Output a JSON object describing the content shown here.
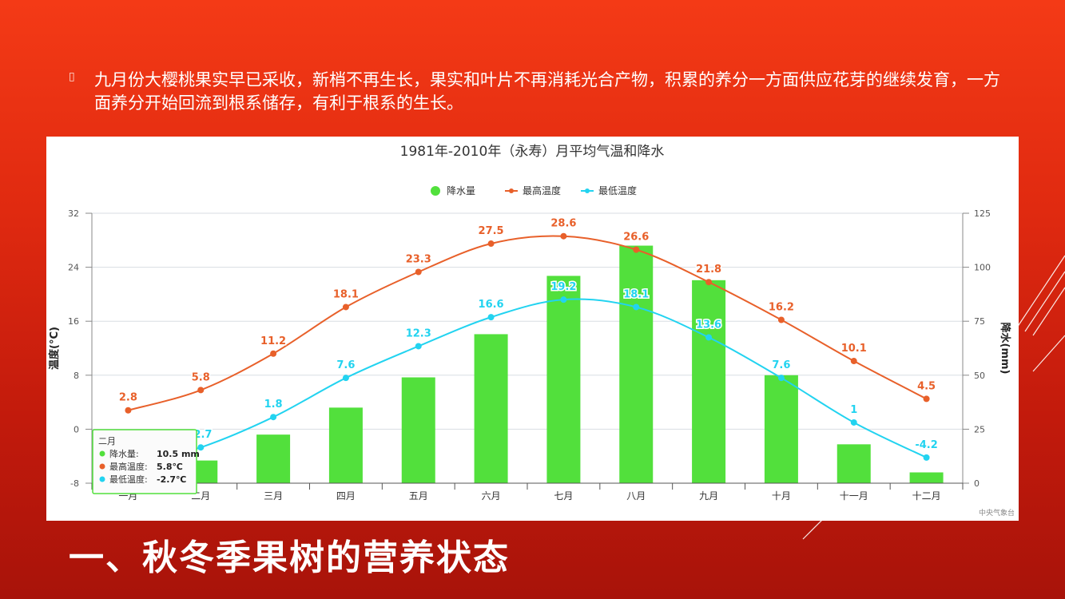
{
  "slide": {
    "bullet_icon": "bullet-glyph",
    "bullet_text": "九月份大樱桃果实早已采收，新梢不再生长，果实和叶片不再消耗光合产物，积累的养分一方面供应花芽的继续发育，一方面养分开始回流到根系储存，有利于根系的生长。",
    "heading": "一、秋冬季果树的营养状态",
    "background_colors": [
      "#f43a16",
      "#a8130a"
    ]
  },
  "chart_data": {
    "type": "bar",
    "title": "1981年-2010年（永寿）月平均气温和降水",
    "categories": [
      "一月",
      "二月",
      "三月",
      "四月",
      "五月",
      "六月",
      "七月",
      "八月",
      "九月",
      "十月",
      "十一月",
      "十二月"
    ],
    "bar_series": {
      "name": "降水量",
      "values": [
        5,
        10.5,
        22.5,
        35,
        49,
        69,
        96,
        110,
        94,
        50,
        18,
        5
      ],
      "color": "#52e03c"
    },
    "line_series": [
      {
        "name": "最高温度",
        "values": [
          2.8,
          5.8,
          11.2,
          18.1,
          23.3,
          27.5,
          28.6,
          26.6,
          21.8,
          16.2,
          10.1,
          4.5
        ],
        "labels": [
          "2.8",
          "5.8",
          "11.2",
          "18.1",
          "23.3",
          "27.5",
          "28.6",
          "26.6",
          "21.8",
          "16.2",
          "10.1",
          "4.5"
        ],
        "color": "#e8602a"
      },
      {
        "name": "最低温度",
        "values": [
          -5.5,
          -2.7,
          1.8,
          7.6,
          12.3,
          16.6,
          19.2,
          18.1,
          13.6,
          7.6,
          1,
          -4.2
        ],
        "labels": [
          "",
          "-2.7",
          "1.8",
          "7.6",
          "12.3",
          "16.6",
          "19.2",
          "18.1",
          "13.6",
          "7.6",
          "1",
          "-4.2"
        ],
        "color": "#22d3f0"
      }
    ],
    "left_axis": {
      "label": "温度(°C)",
      "ticks": [
        "32",
        "24",
        "16",
        "8",
        "0",
        "-8"
      ],
      "range": [
        -8,
        32
      ]
    },
    "right_axis": {
      "label": "降水(mm)",
      "ticks": [
        "125",
        "100",
        "75",
        "50",
        "25",
        "0"
      ],
      "range": [
        0,
        125
      ]
    },
    "legend": [
      {
        "name": "降水量",
        "color": "#52e03c"
      },
      {
        "name": "最高温度",
        "color": "#e8602a"
      },
      {
        "name": "最低温度",
        "color": "#22d3f0"
      }
    ],
    "legend_position": "top-center",
    "grid": true,
    "credit": "中央气象台",
    "tooltip": {
      "title": "二月",
      "rows": [
        {
          "name": "降水量:",
          "value": "10.5 mm",
          "color": "#52e03c"
        },
        {
          "name": "最高温度:",
          "value": "5.8℃",
          "color": "#e8602a"
        },
        {
          "name": "最低温度:",
          "value": "-2.7℃",
          "color": "#22d3f0"
        }
      ]
    }
  }
}
